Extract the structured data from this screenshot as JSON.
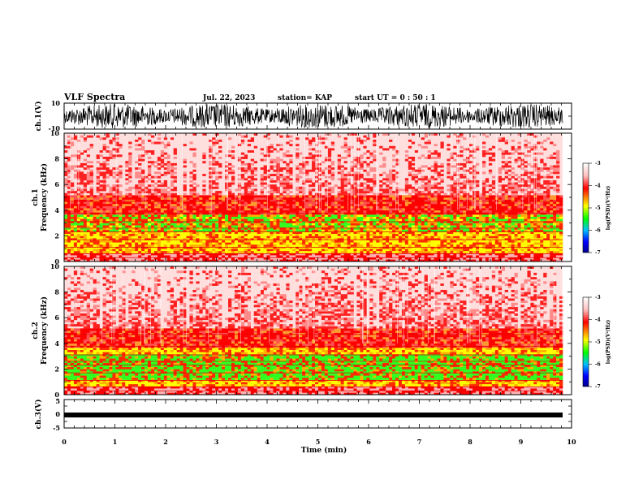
{
  "header": {
    "title": "VLF Spectra",
    "date": "Jul. 22, 2023",
    "station": "station= KAP",
    "start": "start  UT =   0 : 50 : 1"
  },
  "chart_data": [
    {
      "id": "ch1-waveform",
      "type": "line",
      "ylabel": "ch.1(V)",
      "ylim": [
        -10,
        10
      ],
      "yticks": [
        "10",
        "-10"
      ],
      "xlim": [
        0,
        10
      ]
    },
    {
      "id": "ch1-spectrogram",
      "type": "heatmap",
      "ylabel_top": "ch.1",
      "ylabel": "Frequency  (kHz)",
      "ylim": [
        0,
        10
      ],
      "yticks": [
        "0",
        "2",
        "4",
        "6",
        "8",
        "10"
      ],
      "xlim": [
        0,
        9.83
      ],
      "colorbar": {
        "label": "log(PSD)(V²/Hz)",
        "range": [
          -7,
          -3
        ],
        "ticks": [
          "-3",
          "-4",
          "-5",
          "-6",
          "-7"
        ]
      }
    },
    {
      "id": "ch2-spectrogram",
      "type": "heatmap",
      "ylabel_top": "ch.2",
      "ylabel": "Frequency  (kHz)",
      "ylim": [
        0,
        10
      ],
      "yticks": [
        "0",
        "2",
        "4",
        "6",
        "8",
        "10"
      ],
      "xlim": [
        0,
        9.83
      ],
      "colorbar": {
        "label": "log(PSD)(V²/Hz)",
        "range": [
          -7,
          -3
        ],
        "ticks": [
          "-3",
          "-4",
          "-5",
          "-6",
          "-7"
        ]
      }
    },
    {
      "id": "ch3-waveform",
      "type": "line",
      "ylabel": "ch.3(V)",
      "ylim": [
        -5,
        5
      ],
      "yticks": [
        "5",
        "0",
        "-5"
      ],
      "xlabel": "Time  (min)",
      "xlim": [
        0,
        10
      ],
      "xticks": [
        "0",
        "1",
        "2",
        "3",
        "4",
        "5",
        "6",
        "7",
        "8",
        "9",
        "10"
      ]
    }
  ],
  "colors": {
    "colormap": [
      "#ffffff",
      "#ffc0c0",
      "#ff0000",
      "#ff8000",
      "#ffff00",
      "#00ff00",
      "#00c0ff",
      "#0000ff",
      "#00008b"
    ],
    "waveform": "#000000"
  }
}
